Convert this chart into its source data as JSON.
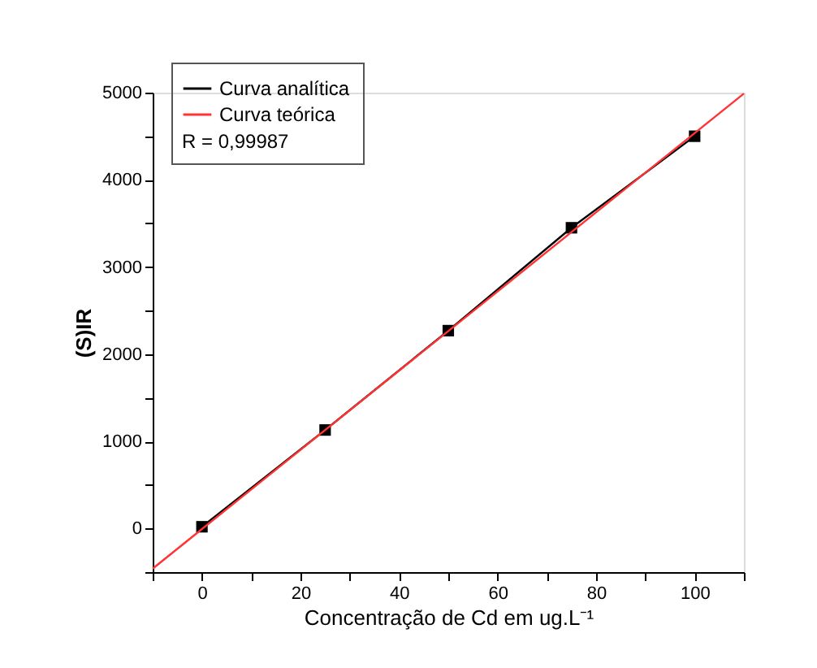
{
  "chart_data": {
    "type": "line",
    "xlabel": "Concentração de Cd em ug.L⁻¹",
    "ylabel": "(S)IR",
    "series": [
      {
        "name": "Curva analítica",
        "color": "#000000",
        "x": [
          0,
          25,
          50,
          75,
          100
        ],
        "values": [
          20,
          1130,
          2270,
          3450,
          4500
        ],
        "marker": "square",
        "line_style": "solid"
      },
      {
        "name": "Curva teórica",
        "color": "#ff3333",
        "x": [
          -10,
          110
        ],
        "values": [
          -460,
          4990
        ],
        "marker": "none",
        "line_style": "solid"
      }
    ],
    "annotations": [
      "R = 0,99987"
    ],
    "xlim": [
      -10,
      110
    ],
    "xticks": [
      {
        "value": -10,
        "label": null
      },
      0,
      {
        "value": 10,
        "label": null
      },
      20,
      {
        "value": 30,
        "label": null
      },
      40,
      {
        "value": 50,
        "label": null
      },
      60,
      {
        "value": 70,
        "label": null
      },
      80,
      {
        "value": 90,
        "label": null
      },
      100,
      {
        "value": 110,
        "label": null
      }
    ],
    "ylim": [
      -500,
      5000
    ],
    "yticks": [
      {
        "value": -500,
        "label": null
      },
      0,
      {
        "value": 500,
        "label": null
      },
      1000,
      {
        "value": 1500,
        "label": null
      },
      2000,
      {
        "value": 2500,
        "label": null
      },
      3000,
      {
        "value": 3500,
        "label": null
      },
      4000,
      {
        "value": 4500,
        "label": null
      },
      5000
    ],
    "grid": false,
    "legend": "top left"
  }
}
